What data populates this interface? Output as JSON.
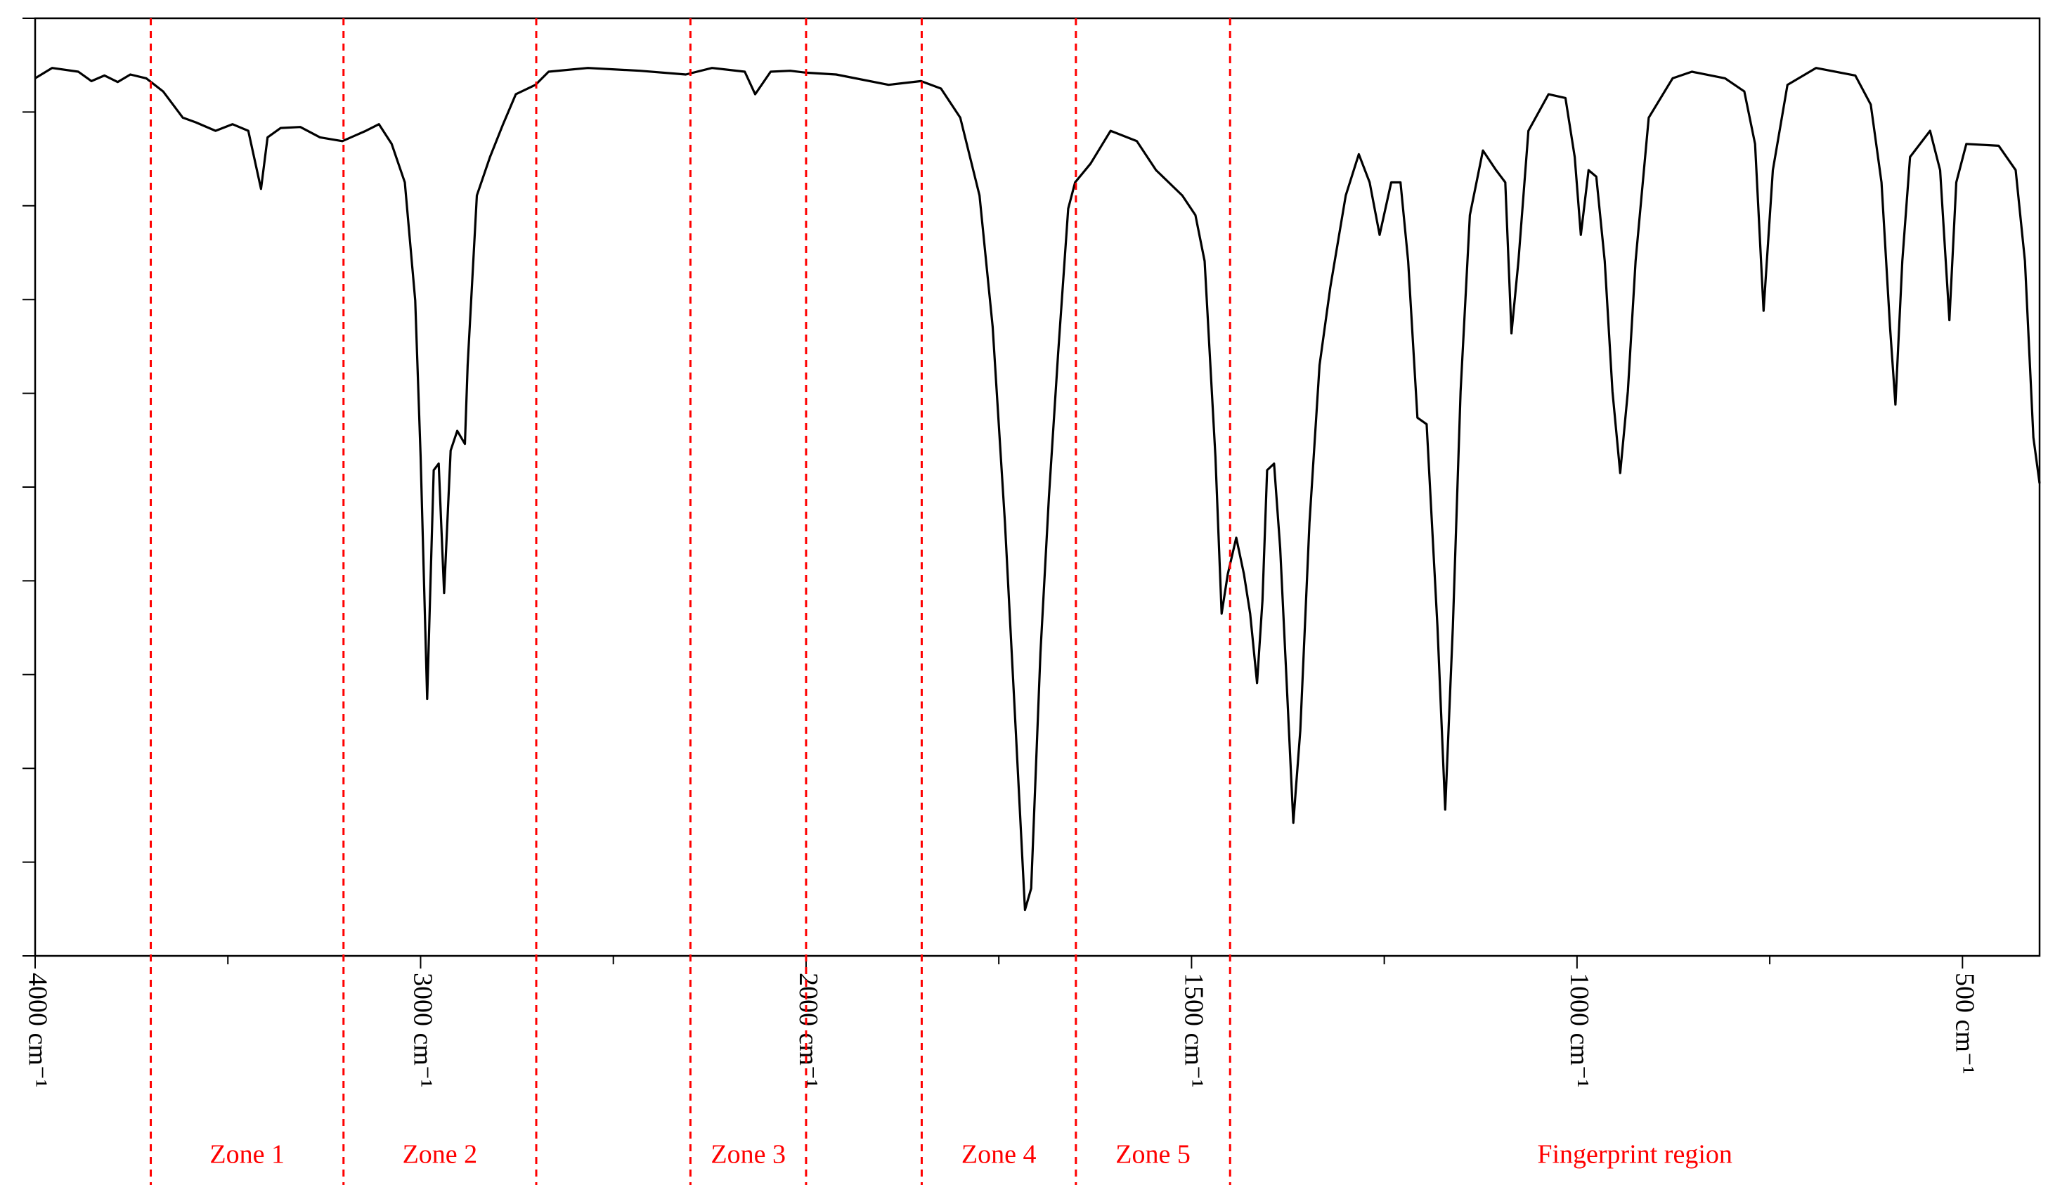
{
  "chart_data": {
    "type": "line",
    "x": [
      4000,
      3956,
      3888,
      3854,
      3820,
      3786,
      3753,
      3712,
      3668,
      3617,
      3583,
      3532,
      3488,
      3447,
      3414,
      3397,
      3363,
      3312,
      3261,
      3203,
      3142,
      3108,
      3075,
      3041,
      3014,
      3000,
      2983,
      2966,
      2953,
      2939,
      2922,
      2905,
      2885,
      2878,
      2854,
      2820,
      2786,
      2753,
      2702,
      2668,
      2566,
      2431,
      2312,
      2244,
      2159,
      2132,
      2092,
      2041,
      2000,
      1961,
      1893,
      1851,
      1825,
      1800,
      1775,
      1758,
      1742,
      1728,
      1716,
      1708,
      1696,
      1685,
      1673,
      1660,
      1651,
      1631,
      1605,
      1571,
      1546,
      1512,
      1495,
      1483,
      1469,
      1461,
      1453,
      1442,
      1432,
      1424,
      1415,
      1408,
      1402,
      1393,
      1385,
      1376,
      1368,
      1359,
      1347,
      1334,
      1320,
      1300,
      1283,
      1269,
      1256,
      1241,
      1229,
      1219,
      1207,
      1195,
      1181,
      1171,
      1161,
      1151,
      1139,
      1122,
      1105,
      1093,
      1085,
      1076,
      1063,
      1037,
      1015,
      1003,
      995,
      985,
      975,
      964,
      954,
      944,
      934,
      924,
      907,
      876,
      851,
      808,
      783,
      769,
      758,
      746,
      727,
      690,
      639,
      619,
      605,
      594,
      587,
      578,
      568,
      542,
      529,
      517,
      508,
      495,
      453,
      431,
      419,
      408,
      400
    ],
    "values": [
      93.6,
      94.7,
      94.3,
      93.3,
      93.9,
      93.2,
      94.0,
      93.6,
      92.2,
      89.4,
      88.9,
      88.0,
      88.7,
      88.0,
      81.8,
      87.3,
      88.3,
      88.4,
      87.3,
      86.9,
      88.0,
      88.7,
      86.6,
      82.5,
      69.9,
      53.2,
      27.4,
      51.8,
      52.5,
      38.7,
      53.9,
      56.0,
      54.6,
      63.0,
      81.1,
      85.2,
      88.7,
      91.9,
      92.9,
      94.3,
      94.7,
      94.4,
      94.0,
      94.7,
      94.3,
      91.9,
      94.3,
      94.4,
      94.2,
      94.0,
      92.9,
      93.3,
      92.5,
      89.4,
      81.1,
      67.1,
      46.2,
      24.0,
      4.9,
      7.2,
      32.3,
      49.0,
      64.3,
      79.7,
      82.5,
      84.5,
      88.0,
      86.9,
      83.8,
      81.1,
      79.0,
      74.1,
      53.2,
      36.5,
      40.7,
      44.6,
      40.7,
      36.5,
      29.1,
      37.9,
      51.8,
      52.5,
      43.5,
      28.1,
      14.2,
      24.0,
      46.2,
      63.0,
      71.3,
      81.1,
      85.5,
      82.5,
      76.9,
      82.5,
      82.5,
      74.1,
      57.4,
      56.7,
      35.1,
      15.6,
      35.1,
      60.2,
      79.0,
      85.9,
      83.8,
      82.5,
      66.4,
      74.1,
      88.0,
      91.9,
      91.5,
      85.2,
      76.9,
      83.8,
      83.1,
      74.1,
      60.2,
      51.5,
      60.2,
      74.1,
      89.4,
      93.6,
      94.3,
      93.6,
      92.2,
      86.6,
      68.8,
      83.8,
      92.9,
      94.7,
      93.9,
      90.8,
      82.5,
      67.1,
      58.8,
      74.1,
      85.2,
      88.0,
      83.8,
      67.8,
      82.5,
      86.6,
      86.4,
      83.8,
      74.1,
      55.3,
      50.4
    ],
    "color": "#000000",
    "xlim": [
      4000,
      400
    ],
    "x_expansion": {
      "below": 2000,
      "factor": 2
    },
    "xticks": [
      {
        "value": 4000,
        "label": "4000 cm⁻¹"
      },
      {
        "value": 3000,
        "label": "3000 cm⁻¹"
      },
      {
        "value": 2000,
        "label": "2000 cm⁻¹"
      },
      {
        "value": 1500,
        "label": "1500 cm⁻¹"
      },
      {
        "value": 1000,
        "label": "1000 cm⁻¹"
      },
      {
        "value": 500,
        "label": "500 cm⁻¹"
      }
    ],
    "xminor_ticks": [
      3500,
      2500,
      1750,
      1250,
      750
    ],
    "ylim": [
      0,
      100
    ],
    "yticks": [
      0,
      10,
      20,
      30,
      40,
      50,
      60,
      70,
      80,
      90,
      100
    ],
    "zone_color": "#ff0000",
    "zones": [
      {
        "label": "Zone 1",
        "start": 3700,
        "end": 3200
      },
      {
        "label": "Zone 2",
        "start": 3200,
        "end": 2700
      },
      {
        "label": "Zone 3",
        "start": 2300,
        "end": 2000
      },
      {
        "label": "Zone 4",
        "start": 1850,
        "end": 1650
      },
      {
        "label": "Zone 5",
        "start": 1650,
        "end": 1450
      },
      {
        "label": "Fingerprint region",
        "start": 1450,
        "end": 400
      }
    ]
  }
}
